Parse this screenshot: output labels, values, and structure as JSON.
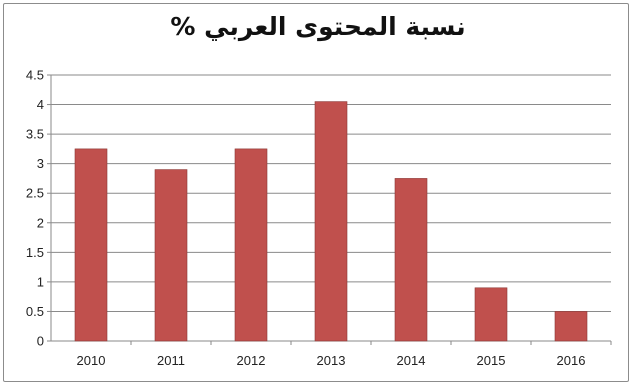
{
  "chart_data": {
    "type": "bar",
    "title": "نسبة المحتوى العربي %",
    "xlabel": "",
    "ylabel": "",
    "categories": [
      "2010",
      "2011",
      "2012",
      "2013",
      "2014",
      "2015",
      "2016"
    ],
    "values": [
      3.25,
      2.9,
      3.25,
      4.05,
      2.75,
      0.9,
      0.5
    ],
    "ylim": [
      0,
      4.5
    ],
    "yticks": [
      0,
      0.5,
      1,
      1.5,
      2,
      2.5,
      3,
      3.5,
      4,
      4.5
    ],
    "ytick_labels": [
      "0",
      "0.5",
      "1",
      "1.5",
      "2",
      "2.5",
      "3",
      "3.5",
      "4",
      "4.5"
    ],
    "grid": "horizontal",
    "legend": "none",
    "bar_color": "#c0504d",
    "bar_edge_color": "#8c3836"
  }
}
